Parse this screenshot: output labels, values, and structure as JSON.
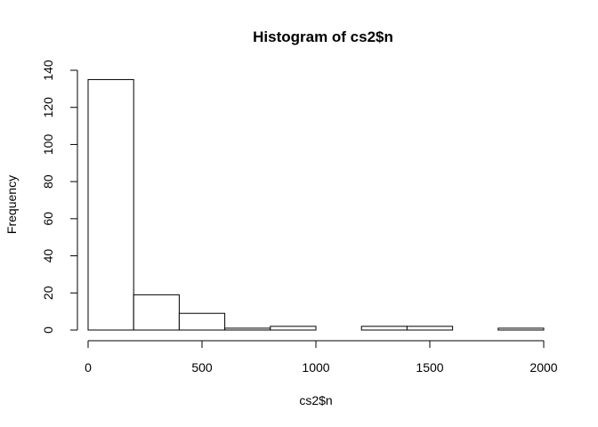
{
  "chart_data": {
    "type": "bar",
    "title": "Histogram of cs2$n",
    "xlabel": "cs2$n",
    "ylabel": "Frequency",
    "bins": [
      {
        "start": 0,
        "end": 200,
        "count": 135
      },
      {
        "start": 200,
        "end": 400,
        "count": 19
      },
      {
        "start": 400,
        "end": 600,
        "count": 9
      },
      {
        "start": 600,
        "end": 800,
        "count": 1
      },
      {
        "start": 800,
        "end": 1000,
        "count": 2
      },
      {
        "start": 1000,
        "end": 1200,
        "count": 0
      },
      {
        "start": 1200,
        "end": 1400,
        "count": 2
      },
      {
        "start": 1400,
        "end": 1600,
        "count": 2
      },
      {
        "start": 1600,
        "end": 1800,
        "count": 0
      },
      {
        "start": 1800,
        "end": 2000,
        "count": 1
      }
    ],
    "xlim": [
      0,
      2000
    ],
    "ylim": [
      0,
      140
    ],
    "xticks": [
      0,
      500,
      1000,
      1500,
      2000
    ],
    "yticks": [
      0,
      20,
      40,
      60,
      80,
      100,
      120,
      140
    ],
    "grid": false,
    "bar_fill": "#ffffff",
    "bar_stroke": "#000000"
  }
}
